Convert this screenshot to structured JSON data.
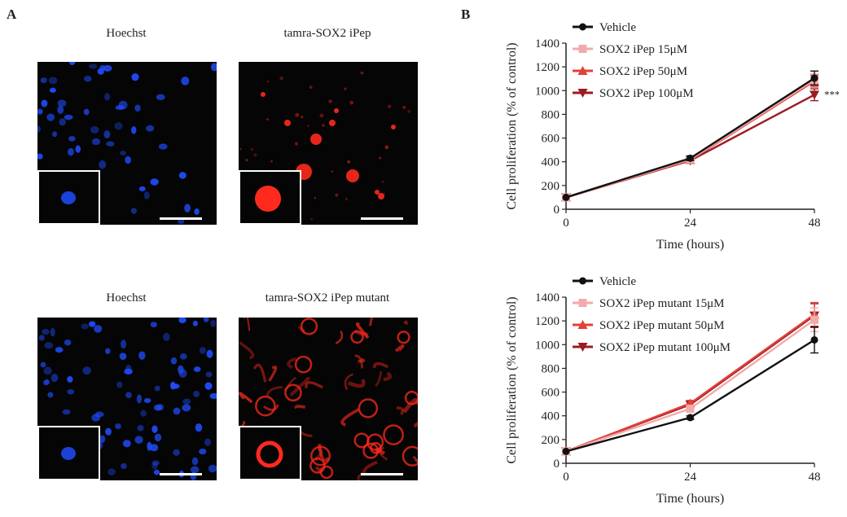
{
  "panels": {
    "a": "A",
    "b": "B"
  },
  "images": [
    {
      "title": "Hoechst",
      "stain": "blue",
      "pattern": "nuclei-sparse"
    },
    {
      "title": "tamra-SOX2 iPep",
      "stain": "red",
      "pattern": "spots"
    },
    {
      "title": "Hoechst",
      "stain": "blue",
      "pattern": "nuclei-dense"
    },
    {
      "title": "tamra-SOX2 iPep mutant",
      "stain": "red",
      "pattern": "network"
    }
  ],
  "colors": {
    "vehicle": "#111111",
    "c15": "#f2aaaa",
    "c50": "#e2403a",
    "c100": "#9c1b22",
    "blue_stain": "#1f4dff",
    "red_stain": "#ff2a1e"
  },
  "chart_data": [
    {
      "type": "line",
      "xlabel": "Time (hours)",
      "ylabel": "Cell proliferation (% of control)",
      "x": [
        0,
        24,
        48
      ],
      "xlim": [
        0,
        48
      ],
      "ylim": [
        0,
        1400
      ],
      "yticks": [
        0,
        200,
        400,
        600,
        800,
        1000,
        1200,
        1400
      ],
      "annotation": "***",
      "series": [
        {
          "name": "Vehicle",
          "marker": "circle",
          "color": "#111111",
          "values": [
            100,
            430,
            1105
          ],
          "errors": [
            0,
            20,
            60
          ]
        },
        {
          "name": "SOX2 iPep 15μM",
          "marker": "square",
          "color": "#f2aaaa",
          "values": [
            100,
            420,
            1090
          ],
          "errors": [
            0,
            18,
            50
          ]
        },
        {
          "name": "SOX2 iPep 50μM",
          "marker": "triangle-up",
          "color": "#e2403a",
          "values": [
            100,
            415,
            1080
          ],
          "errors": [
            0,
            18,
            50
          ]
        },
        {
          "name": "SOX2 iPep 100μM",
          "marker": "triangle-down",
          "color": "#9c1b22",
          "values": [
            100,
            410,
            965
          ],
          "errors": [
            0,
            18,
            50
          ]
        }
      ]
    },
    {
      "type": "line",
      "xlabel": "Time (hours)",
      "ylabel": "Cell proliferation (% of control)",
      "x": [
        0,
        24,
        48
      ],
      "xlim": [
        0,
        48
      ],
      "ylim": [
        0,
        1400
      ],
      "yticks": [
        0,
        200,
        400,
        600,
        800,
        1000,
        1200,
        1400
      ],
      "annotation": "",
      "series": [
        {
          "name": "Vehicle",
          "marker": "circle",
          "color": "#111111",
          "values": [
            100,
            385,
            1040
          ],
          "errors": [
            0,
            15,
            110
          ]
        },
        {
          "name": "SOX2 iPep mutant 15μM",
          "marker": "square",
          "color": "#f2aaaa",
          "values": [
            100,
            460,
            1210
          ],
          "errors": [
            0,
            25,
            100
          ]
        },
        {
          "name": "SOX2 iPep mutant 50μM",
          "marker": "triangle-up",
          "color": "#e2403a",
          "values": [
            100,
            505,
            1255
          ],
          "errors": [
            0,
            25,
            100
          ]
        },
        {
          "name": "SOX2 iPep mutant 100μM",
          "marker": "triangle-down",
          "color": "#9c1b22",
          "values": [
            100,
            495,
            1245
          ],
          "errors": [
            0,
            25,
            100
          ]
        }
      ]
    }
  ]
}
